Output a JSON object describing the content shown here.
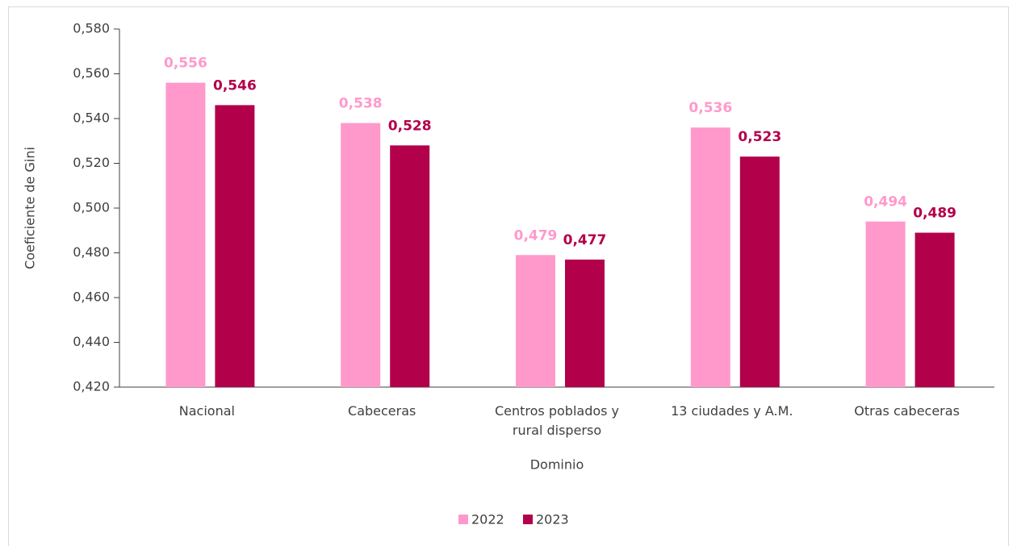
{
  "chart_data": {
    "type": "bar",
    "categories": [
      "Nacional",
      "Cabeceras",
      "Centros poblados y rural disperso",
      "13 ciudades y A.M.",
      "Otras cabeceras"
    ],
    "series": [
      {
        "name": "2022",
        "color": "#ff99cc",
        "values": [
          0.556,
          0.538,
          0.479,
          0.536,
          0.494
        ],
        "value_labels": [
          "0,556",
          "0,538",
          "0,479",
          "0,536",
          "0,494"
        ]
      },
      {
        "name": "2023",
        "color": "#b3004b",
        "values": [
          0.546,
          0.528,
          0.477,
          0.523,
          0.489
        ],
        "value_labels": [
          "0,546",
          "0,528",
          "0,477",
          "0,523",
          "0,489"
        ]
      }
    ],
    "y_label": "Coeficiente de Gini",
    "x_label": "Dominio",
    "ylim": [
      0.42,
      0.58
    ],
    "yticks": [
      {
        "value": 0.42,
        "label": "0,420"
      },
      {
        "value": 0.44,
        "label": "0,440"
      },
      {
        "value": 0.46,
        "label": "0,460"
      },
      {
        "value": 0.48,
        "label": "0,480"
      },
      {
        "value": 0.5,
        "label": "0,500"
      },
      {
        "value": 0.52,
        "label": "0,520"
      },
      {
        "value": 0.54,
        "label": "0,540"
      },
      {
        "value": 0.56,
        "label": "0,560"
      },
      {
        "value": 0.58,
        "label": "0,580"
      }
    ],
    "grid": false,
    "legend": "bottom"
  }
}
